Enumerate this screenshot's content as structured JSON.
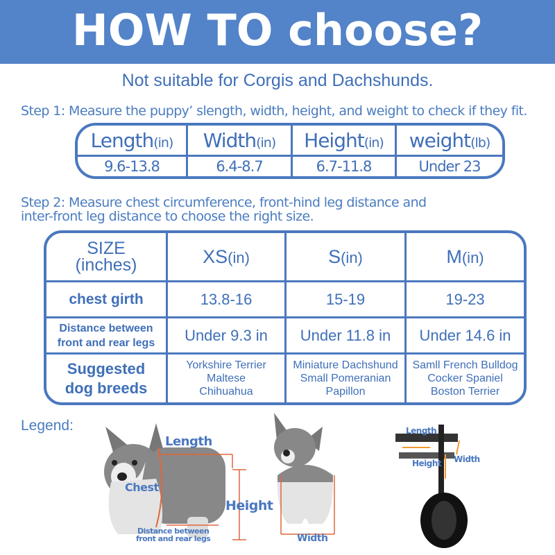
{
  "header": {
    "title": "HOW TO choose?"
  },
  "subtitle": "Not suitable for Corgis and Dachshunds.",
  "step1": {
    "text": "Step 1: Measure the puppy’ slength, width, height, and weight to check if they fit.",
    "columns": [
      {
        "label": "Length",
        "unit": "(in)",
        "value": "9.6-13.8"
      },
      {
        "label": "Width",
        "unit": "(in)",
        "value": "6.4-8.7"
      },
      {
        "label": "Height",
        "unit": "(in)",
        "value": "6.7-11.8"
      },
      {
        "label": "weight",
        "unit": "(lb)",
        "value": "Under 23"
      }
    ]
  },
  "step2": {
    "line1": "Step 2: Measure chest circumference, front-hind leg distance and",
    "line2": "inter-front leg distance to choose the right size.",
    "corner": {
      "line1": "SIZE",
      "line2": "(inches)"
    },
    "sizes": [
      {
        "label": "XS",
        "unit": "(in)"
      },
      {
        "label": "S",
        "unit": "(in)"
      },
      {
        "label": "M",
        "unit": "(in)"
      }
    ],
    "rows": [
      {
        "label": "chest girth",
        "values": [
          "13.8-16",
          "15-19",
          "19-23"
        ]
      },
      {
        "label1": "Distance between",
        "label2": "front and rear legs",
        "values": [
          "Under 9.3 in",
          "Under 11.8 in",
          "Under 14.6 in"
        ]
      },
      {
        "label1": "Suggested",
        "label2": "dog breeds",
        "breeds": [
          [
            "Yorkshire Terrier",
            "Maltese",
            "Chihuahua"
          ],
          [
            "Miniature Dachshund",
            "Small Pomeranian",
            "Papillon"
          ],
          [
            "Samll French Bulldog",
            "Cocker Spaniel",
            "Boston Terrier"
          ]
        ]
      }
    ]
  },
  "legend": {
    "title": "Legend:",
    "side": {
      "length": "Length",
      "chest": "Chest",
      "height": "Height",
      "distance1": "Distance between",
      "distance2": "front and rear legs"
    },
    "back": {
      "width": "Width"
    },
    "wheelchair": {
      "length": "Length",
      "height": "Height",
      "width": "Width"
    }
  },
  "colors": {
    "header": "#5383c8",
    "text": "#4272b8",
    "border": "#4a78bf",
    "measure": "#e0663a"
  }
}
